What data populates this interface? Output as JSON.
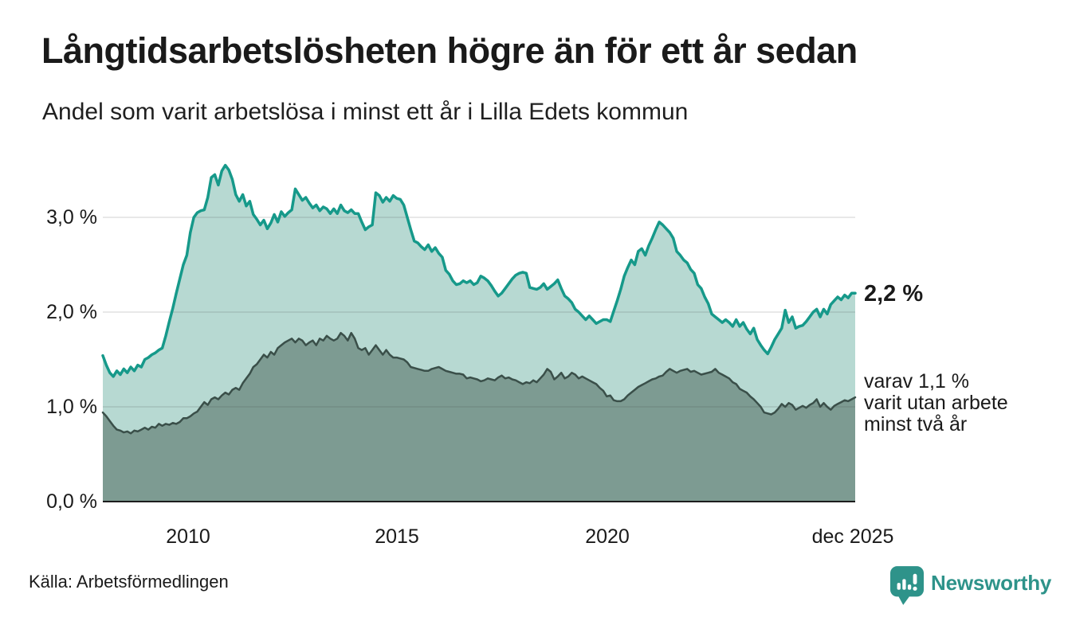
{
  "header": {
    "title": "Långtidsarbetslösheten högre än för ett år sedan",
    "subtitle": "Andel som varit arbetslösa i minst ett år i Lilla Edets kommun"
  },
  "chart_data": {
    "type": "area",
    "title": "Långtidsarbetslösheten högre än för ett år sedan",
    "subtitle": "Andel som varit arbetslösa i minst ett år i Lilla Edets kommun",
    "unit": "%",
    "frequency": "monthly",
    "x_start": "2008-01",
    "x_end": "2025-12",
    "xlabel": "",
    "ylabel": "",
    "ylim": [
      0,
      3.7
    ],
    "grid": "horizontal",
    "y_tick_values": [
      0,
      1,
      2,
      3
    ],
    "y_tick_labels": [
      "0,0 %",
      "1,0 %",
      "2,0 %",
      "3,0 %"
    ],
    "x_tick_labels": [
      "2010",
      "2015",
      "2020",
      "dec 2025"
    ],
    "series": [
      {
        "name": "Andel som varit arbetslösa i minst ett år",
        "line_color": "#16998a",
        "fill_color": "#b7d9d2",
        "end_value": 2.2,
        "values": [
          1.54,
          1.44,
          1.36,
          1.32,
          1.38,
          1.34,
          1.4,
          1.36,
          1.42,
          1.38,
          1.44,
          1.42,
          1.5,
          1.52,
          1.55,
          1.57,
          1.6,
          1.62,
          1.75,
          1.9,
          2.04,
          2.2,
          2.35,
          2.5,
          2.6,
          2.84,
          3.0,
          3.05,
          3.07,
          3.08,
          3.21,
          3.42,
          3.45,
          3.34,
          3.49,
          3.55,
          3.5,
          3.4,
          3.24,
          3.17,
          3.24,
          3.12,
          3.17,
          3.03,
          2.98,
          2.92,
          2.97,
          2.88,
          2.94,
          3.03,
          2.95,
          3.06,
          3.01,
          3.05,
          3.08,
          3.3,
          3.24,
          3.18,
          3.21,
          3.15,
          3.1,
          3.13,
          3.07,
          3.11,
          3.09,
          3.04,
          3.09,
          3.04,
          3.13,
          3.07,
          3.05,
          3.08,
          3.04,
          3.04,
          2.95,
          2.87,
          2.9,
          2.92,
          3.26,
          3.23,
          3.16,
          3.21,
          3.17,
          3.23,
          3.2,
          3.19,
          3.13,
          3.0,
          2.87,
          2.75,
          2.73,
          2.69,
          2.66,
          2.71,
          2.64,
          2.68,
          2.62,
          2.58,
          2.44,
          2.4,
          2.33,
          2.29,
          2.3,
          2.33,
          2.31,
          2.33,
          2.29,
          2.31,
          2.38,
          2.36,
          2.33,
          2.28,
          2.22,
          2.17,
          2.2,
          2.25,
          2.3,
          2.35,
          2.39,
          2.41,
          2.42,
          2.41,
          2.26,
          2.25,
          2.24,
          2.26,
          2.3,
          2.24,
          2.27,
          2.3,
          2.34,
          2.25,
          2.17,
          2.14,
          2.1,
          2.03,
          2.0,
          1.96,
          1.92,
          1.96,
          1.92,
          1.88,
          1.9,
          1.92,
          1.92,
          1.9,
          2.01,
          2.12,
          2.24,
          2.38,
          2.47,
          2.55,
          2.5,
          2.64,
          2.67,
          2.6,
          2.7,
          2.78,
          2.87,
          2.95,
          2.92,
          2.88,
          2.84,
          2.78,
          2.64,
          2.6,
          2.55,
          2.52,
          2.45,
          2.41,
          2.29,
          2.25,
          2.16,
          2.09,
          1.98,
          1.95,
          1.92,
          1.89,
          1.92,
          1.89,
          1.85,
          1.92,
          1.85,
          1.89,
          1.82,
          1.77,
          1.83,
          1.71,
          1.65,
          1.6,
          1.56,
          1.63,
          1.71,
          1.77,
          1.83,
          2.02,
          1.89,
          1.95,
          1.83,
          1.85,
          1.86,
          1.9,
          1.95,
          2.0,
          2.03,
          1.95,
          2.03,
          1.98,
          2.08,
          2.12,
          2.16,
          2.13,
          2.18,
          2.15,
          2.2,
          2.2
        ]
      },
      {
        "name": "varav utan arbete minst två år",
        "line_color": "#3a4f49",
        "fill_color": "#7d9b92",
        "end_value": 1.1,
        "values": [
          0.94,
          0.9,
          0.85,
          0.8,
          0.76,
          0.75,
          0.73,
          0.74,
          0.72,
          0.75,
          0.74,
          0.76,
          0.78,
          0.76,
          0.79,
          0.78,
          0.82,
          0.8,
          0.82,
          0.81,
          0.83,
          0.82,
          0.84,
          0.88,
          0.88,
          0.9,
          0.93,
          0.95,
          1.0,
          1.05,
          1.02,
          1.08,
          1.1,
          1.08,
          1.12,
          1.15,
          1.13,
          1.18,
          1.2,
          1.18,
          1.25,
          1.3,
          1.35,
          1.42,
          1.45,
          1.5,
          1.55,
          1.52,
          1.58,
          1.55,
          1.62,
          1.65,
          1.68,
          1.7,
          1.72,
          1.68,
          1.72,
          1.7,
          1.65,
          1.68,
          1.7,
          1.65,
          1.72,
          1.7,
          1.75,
          1.72,
          1.7,
          1.72,
          1.78,
          1.75,
          1.7,
          1.78,
          1.72,
          1.62,
          1.6,
          1.62,
          1.55,
          1.6,
          1.65,
          1.6,
          1.55,
          1.6,
          1.55,
          1.52,
          1.52,
          1.51,
          1.5,
          1.47,
          1.42,
          1.41,
          1.4,
          1.39,
          1.38,
          1.38,
          1.4,
          1.41,
          1.42,
          1.4,
          1.38,
          1.37,
          1.36,
          1.35,
          1.35,
          1.34,
          1.3,
          1.31,
          1.3,
          1.29,
          1.27,
          1.28,
          1.3,
          1.29,
          1.28,
          1.31,
          1.33,
          1.3,
          1.31,
          1.29,
          1.28,
          1.26,
          1.24,
          1.26,
          1.25,
          1.28,
          1.26,
          1.3,
          1.34,
          1.4,
          1.37,
          1.29,
          1.32,
          1.36,
          1.3,
          1.32,
          1.36,
          1.34,
          1.3,
          1.32,
          1.3,
          1.28,
          1.26,
          1.24,
          1.2,
          1.17,
          1.11,
          1.12,
          1.07,
          1.06,
          1.06,
          1.08,
          1.12,
          1.15,
          1.18,
          1.21,
          1.23,
          1.25,
          1.27,
          1.29,
          1.3,
          1.32,
          1.33,
          1.37,
          1.4,
          1.38,
          1.36,
          1.38,
          1.39,
          1.4,
          1.37,
          1.38,
          1.36,
          1.34,
          1.35,
          1.36,
          1.37,
          1.4,
          1.36,
          1.34,
          1.32,
          1.3,
          1.26,
          1.24,
          1.19,
          1.17,
          1.15,
          1.11,
          1.08,
          1.04,
          1.0,
          0.94,
          0.93,
          0.92,
          0.94,
          0.98,
          1.03,
          1.0,
          1.04,
          1.02,
          0.97,
          0.99,
          1.01,
          0.99,
          1.02,
          1.04,
          1.08,
          1.0,
          1.04,
          1.0,
          0.97,
          1.01,
          1.03,
          1.05,
          1.07,
          1.06,
          1.08,
          1.1
        ]
      }
    ],
    "annotations": {
      "series1_end": "2,2 %",
      "series2_end_lines": [
        "varav 1,1 %",
        "varit utan arbete",
        "minst två år"
      ]
    }
  },
  "footer": {
    "source": "Källa: Arbetsförmedlingen",
    "brand": "Newsworthy",
    "brand_color": "#2e938a"
  }
}
